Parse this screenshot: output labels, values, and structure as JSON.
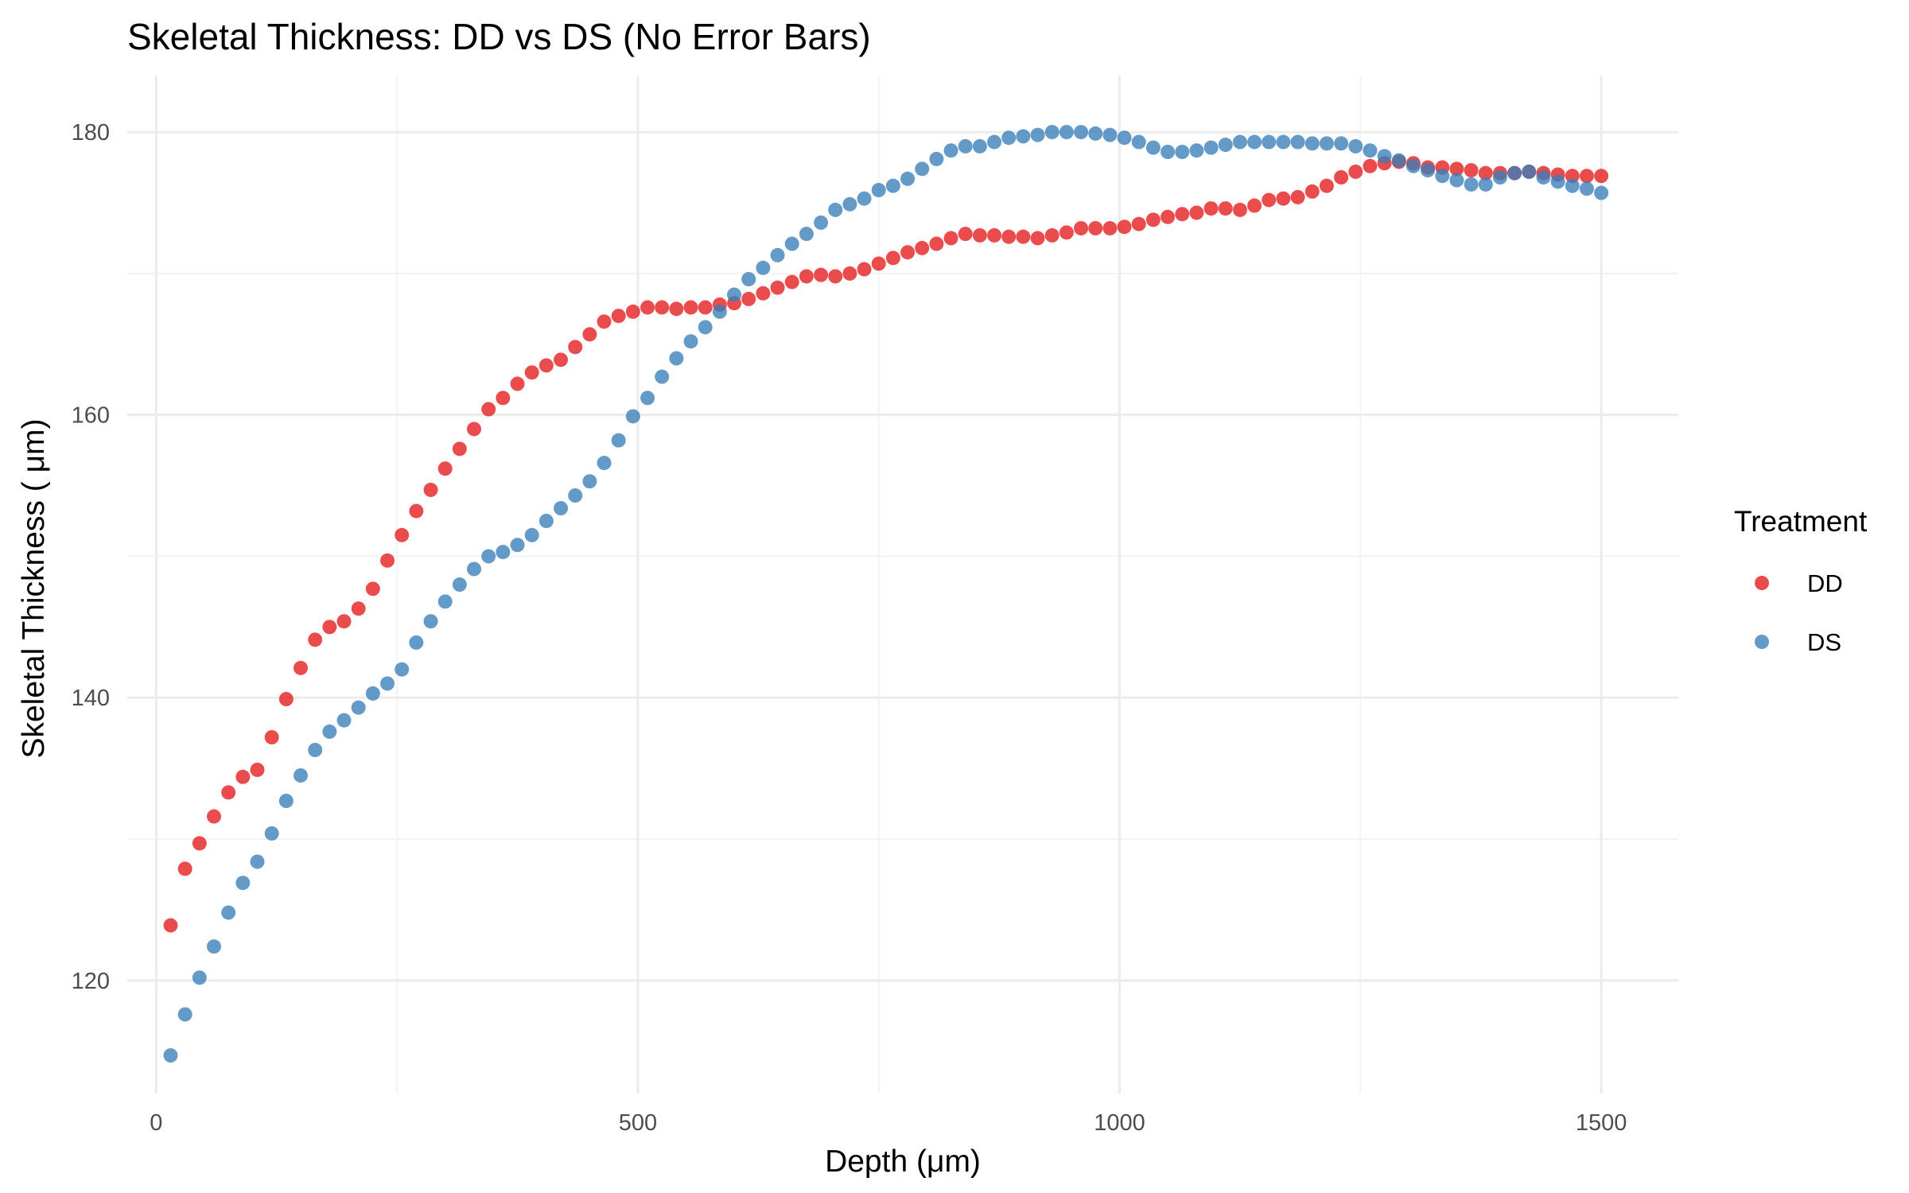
{
  "chart_data": {
    "type": "scatter",
    "title": "Skeletal Thickness: DD vs DS (No Error Bars)",
    "xlabel": "Depth (μm)",
    "ylabel": "Skeletal Thickness ( μm)",
    "xlim": [
      -30,
      1580
    ],
    "ylim": [
      112,
      184
    ],
    "x_ticks": [
      0,
      500,
      1000,
      1500
    ],
    "y_ticks": [
      120,
      140,
      160,
      180
    ],
    "grid": true,
    "legend": {
      "title": "Treatment",
      "position": "right"
    },
    "series": [
      {
        "name": "DD",
        "color": "#e41a1c",
        "x": [
          15,
          30,
          45,
          60,
          75,
          90,
          105,
          120,
          135,
          150,
          165,
          180,
          195,
          210,
          225,
          240,
          255,
          270,
          285,
          300,
          315,
          330,
          345,
          360,
          375,
          390,
          405,
          420,
          435,
          450,
          465,
          480,
          495,
          510,
          525,
          540,
          555,
          570,
          585,
          600,
          615,
          630,
          645,
          660,
          675,
          690,
          705,
          720,
          735,
          750,
          765,
          780,
          795,
          810,
          825,
          840,
          855,
          870,
          885,
          900,
          915,
          930,
          945,
          960,
          975,
          990,
          1005,
          1020,
          1035,
          1050,
          1065,
          1080,
          1095,
          1110,
          1125,
          1140,
          1155,
          1170,
          1185,
          1200,
          1215,
          1230,
          1245,
          1260,
          1275,
          1290,
          1305,
          1320,
          1335,
          1350,
          1365,
          1380,
          1395,
          1410,
          1425,
          1440,
          1455,
          1470,
          1485,
          1500
        ],
        "y": [
          123.9,
          127.9,
          129.7,
          131.6,
          133.3,
          134.4,
          134.9,
          137.2,
          139.9,
          142.1,
          144.1,
          145.0,
          145.4,
          146.3,
          147.7,
          149.7,
          151.5,
          153.2,
          154.7,
          156.2,
          157.6,
          159.0,
          160.4,
          161.2,
          162.2,
          163.0,
          163.5,
          163.9,
          164.8,
          165.7,
          166.6,
          167.0,
          167.3,
          167.6,
          167.6,
          167.5,
          167.6,
          167.6,
          167.8,
          167.9,
          168.2,
          168.6,
          169.0,
          169.4,
          169.8,
          169.9,
          169.8,
          170.0,
          170.3,
          170.7,
          171.1,
          171.5,
          171.8,
          172.1,
          172.5,
          172.8,
          172.7,
          172.7,
          172.6,
          172.6,
          172.5,
          172.7,
          172.9,
          173.2,
          173.2,
          173.2,
          173.3,
          173.5,
          173.8,
          174.0,
          174.2,
          174.3,
          174.6,
          174.6,
          174.5,
          174.8,
          175.2,
          175.3,
          175.4,
          175.8,
          176.2,
          176.8,
          177.2,
          177.6,
          177.8,
          177.9,
          177.8,
          177.5,
          177.5,
          177.4,
          177.3,
          177.1,
          177.1,
          177.1,
          177.2,
          177.1,
          177.0,
          176.9,
          176.9,
          176.9
        ]
      },
      {
        "name": "DS",
        "color": "#377eb8",
        "x": [
          15,
          30,
          45,
          60,
          75,
          90,
          105,
          120,
          135,
          150,
          165,
          180,
          195,
          210,
          225,
          240,
          255,
          270,
          285,
          300,
          315,
          330,
          345,
          360,
          375,
          390,
          405,
          420,
          435,
          450,
          465,
          480,
          495,
          510,
          525,
          540,
          555,
          570,
          585,
          600,
          615,
          630,
          645,
          660,
          675,
          690,
          705,
          720,
          735,
          750,
          765,
          780,
          795,
          810,
          825,
          840,
          855,
          870,
          885,
          900,
          915,
          930,
          945,
          960,
          975,
          990,
          1005,
          1020,
          1035,
          1050,
          1065,
          1080,
          1095,
          1110,
          1125,
          1140,
          1155,
          1170,
          1185,
          1200,
          1215,
          1230,
          1245,
          1260,
          1275,
          1290,
          1305,
          1320,
          1335,
          1350,
          1365,
          1380,
          1395,
          1410,
          1425,
          1440,
          1455,
          1470,
          1485,
          1500
        ],
        "y": [
          114.7,
          117.6,
          120.2,
          122.4,
          124.8,
          126.9,
          128.4,
          130.4,
          132.7,
          134.5,
          136.3,
          137.6,
          138.4,
          139.3,
          140.3,
          141.0,
          142.0,
          143.9,
          145.4,
          146.8,
          148.0,
          149.1,
          150.0,
          150.3,
          150.8,
          151.5,
          152.5,
          153.4,
          154.3,
          155.3,
          156.6,
          158.2,
          159.9,
          161.2,
          162.7,
          164.0,
          165.2,
          166.2,
          167.3,
          168.5,
          169.6,
          170.4,
          171.3,
          172.1,
          172.8,
          173.6,
          174.5,
          174.9,
          175.3,
          175.9,
          176.2,
          176.7,
          177.4,
          178.1,
          178.7,
          179.0,
          179.0,
          179.3,
          179.6,
          179.7,
          179.8,
          180.0,
          180.0,
          180.0,
          179.9,
          179.8,
          179.6,
          179.3,
          178.9,
          178.6,
          178.6,
          178.7,
          178.9,
          179.1,
          179.3,
          179.3,
          179.3,
          179.3,
          179.3,
          179.2,
          179.2,
          179.2,
          179.0,
          178.7,
          178.3,
          178.0,
          177.6,
          177.3,
          176.9,
          176.6,
          176.3,
          176.3,
          176.8,
          177.1,
          177.2,
          176.8,
          176.5,
          176.2,
          176.0,
          175.7
        ]
      }
    ]
  }
}
